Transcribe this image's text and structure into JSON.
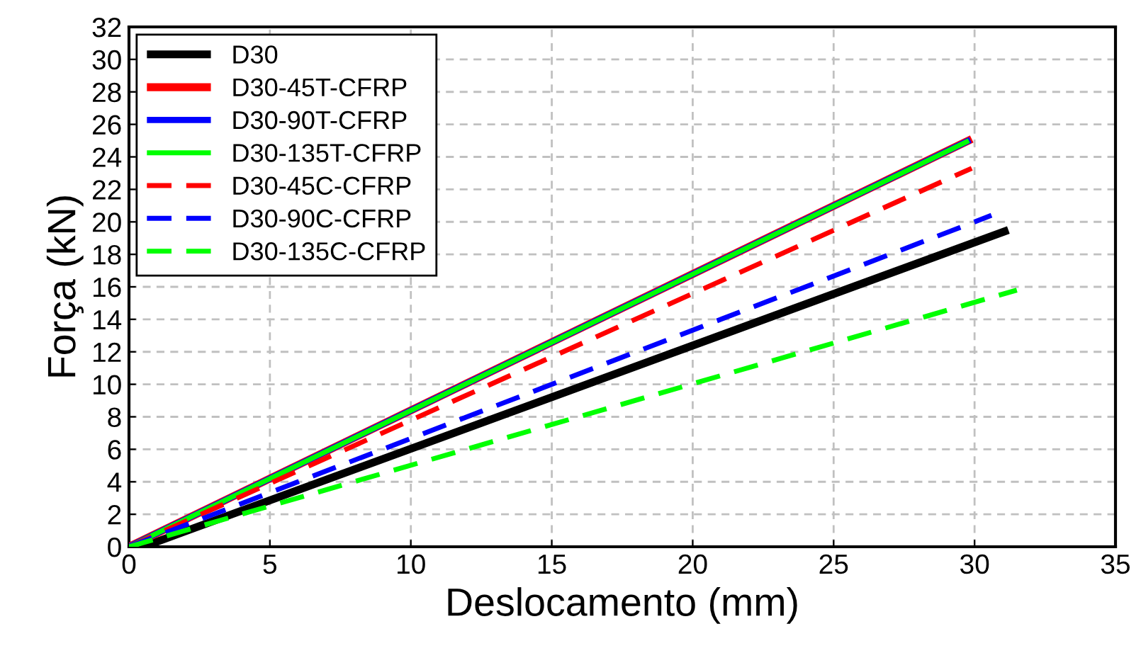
{
  "chart_data": {
    "type": "line",
    "xlabel": "Deslocamento (mm)",
    "ylabel": "Força (kN)",
    "xlim": [
      0,
      35
    ],
    "ylim": [
      0,
      32
    ],
    "xticks": [
      0,
      5,
      10,
      15,
      20,
      25,
      30,
      35
    ],
    "yticks": [
      0,
      2,
      4,
      6,
      8,
      10,
      12,
      14,
      16,
      18,
      20,
      22,
      24,
      26,
      28,
      30,
      32
    ],
    "grid": true,
    "legend": "top left",
    "marker": "none",
    "series": [
      {
        "name": "D30",
        "color": "#000000",
        "x": [
          0.5,
          31.2
        ],
        "values": [
          0,
          19.5
        ],
        "line_style": "solid"
      },
      {
        "name": "D30-45T-CFRP",
        "color": "#ff0000",
        "x": [
          0,
          29.9
        ],
        "values": [
          0,
          25.1
        ],
        "line_style": "solid"
      },
      {
        "name": "D30-90T-CFRP",
        "color": "#0000ff",
        "x": [
          0,
          29.85
        ],
        "values": [
          0,
          25.05
        ],
        "line_style": "solid"
      },
      {
        "name": "D30-135T-CFRP",
        "color": "#00ff00",
        "x": [
          0,
          29.8
        ],
        "values": [
          0,
          25.0
        ],
        "line_style": "solid"
      },
      {
        "name": "D30-45C-CFRP",
        "color": "#ff0000",
        "x": [
          0,
          29.9
        ],
        "values": [
          0,
          23.3
        ],
        "line_style": "dashed"
      },
      {
        "name": "D30-90C-CFRP",
        "color": "#0000ff",
        "x": [
          0,
          30.6
        ],
        "values": [
          0,
          20.4
        ],
        "line_style": "dashed"
      },
      {
        "name": "D30-135C-CFRP",
        "color": "#00ff00",
        "x": [
          0,
          31.5
        ],
        "values": [
          0,
          15.8
        ],
        "line_style": "dashed"
      }
    ]
  }
}
